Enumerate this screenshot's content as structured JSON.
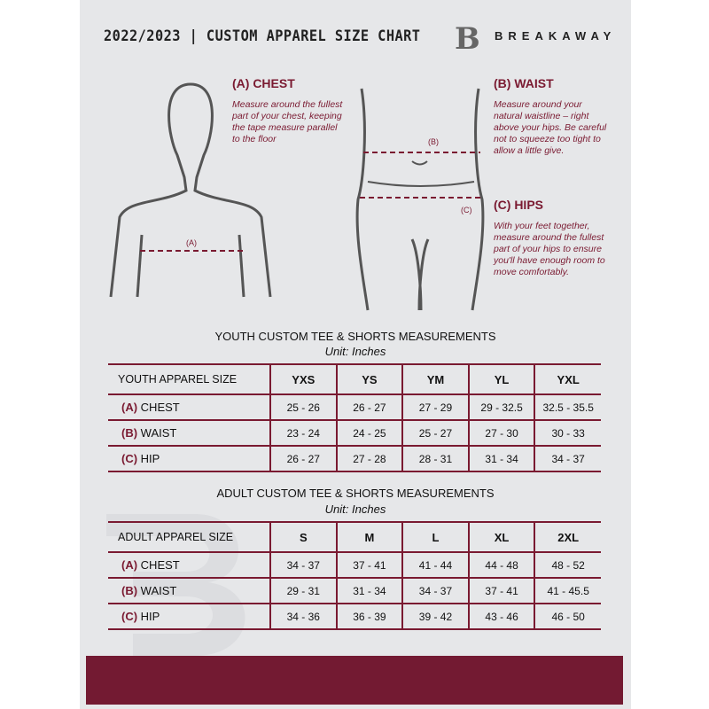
{
  "header": {
    "title": "2022/2023  |  CUSTOM APPAREL SIZE CHART",
    "brand": "BREAKAWAY",
    "logo_letter": "B"
  },
  "guide": {
    "chest": {
      "title": "(A) CHEST",
      "text": "Measure around the fullest part of your chest, keeping the tape measure parallel to the floor",
      "marker": "(A)"
    },
    "waist": {
      "title": "(B) WAIST",
      "text": "Measure around your natural waistline – right above your hips. Be careful not to squeeze too tight to allow a little give.",
      "marker": "(B)"
    },
    "hips": {
      "title": "(C) HIPS",
      "text": "With your feet together, measure around the fullest part of your hips to ensure you'll have enough room to move comfortably.",
      "marker": "(C)"
    }
  },
  "youth": {
    "title": "YOUTH CUSTOM TEE & SHORTS MEASUREMENTS",
    "unit": "Unit: Inches",
    "header": "YOUTH APPAREL SIZE",
    "sizes": [
      "YXS",
      "YS",
      "YM",
      "YL",
      "YXL"
    ],
    "rows": [
      {
        "letter": "(A)",
        "label": "CHEST",
        "values": [
          "25 - 26",
          "26 - 27",
          "27 - 29",
          "29 - 32.5",
          "32.5 - 35.5"
        ]
      },
      {
        "letter": "(B)",
        "label": "WAIST",
        "values": [
          "23 - 24",
          "24 - 25",
          "25 - 27",
          "27 - 30",
          "30 - 33"
        ]
      },
      {
        "letter": "(C)",
        "label": "HIP",
        "values": [
          "26 - 27",
          "27 - 28",
          "28 - 31",
          "31 - 34",
          "34 - 37"
        ]
      }
    ]
  },
  "adult": {
    "title": "ADULT CUSTOM TEE & SHORTS MEASUREMENTS",
    "unit": "Unit: Inches",
    "header": "ADULT APPAREL SIZE",
    "sizes": [
      "S",
      "M",
      "L",
      "XL",
      "2XL"
    ],
    "rows": [
      {
        "letter": "(A)",
        "label": "CHEST",
        "values": [
          "34 - 37",
          "37 - 41",
          "41 - 44",
          "44 - 48",
          "48 - 52"
        ]
      },
      {
        "letter": "(B)",
        "label": "WAIST",
        "values": [
          "29 - 31",
          "31 - 34",
          "34 - 37",
          "37 - 41",
          "41 - 45.5"
        ]
      },
      {
        "letter": "(C)",
        "label": "HIP",
        "values": [
          "34 - 36",
          "36 - 39",
          "39 - 42",
          "43 - 46",
          "46 - 50"
        ]
      }
    ]
  },
  "colors": {
    "accent": "#7a1a31",
    "panel": "#e6e7e9"
  }
}
